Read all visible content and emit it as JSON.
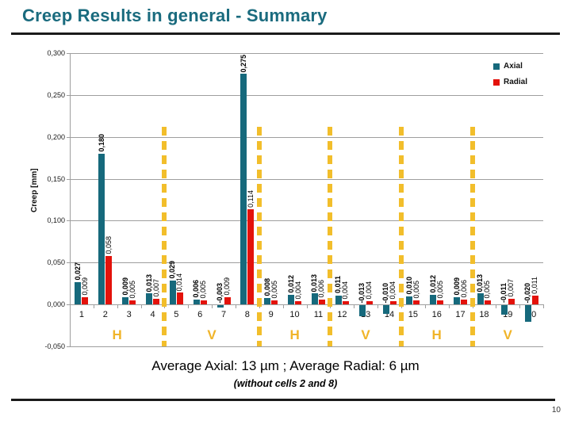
{
  "slide": {
    "title": "Creep Results in general - Summary",
    "summary_line": "Average Axial: 13 µm  ;  Average Radial: 6 µm",
    "summary_note": "(without cells 2 and 8)",
    "page_number": "10"
  },
  "colors": {
    "title": "#1A6B7E",
    "rule": "#1b1b1b",
    "gridline": "#9E9E9E",
    "axial": "#16697C",
    "radial": "#E3120B",
    "separator": "#F2BE2B",
    "group_letter": "#F0B429"
  },
  "chart_data": {
    "type": "bar",
    "title": "",
    "xlabel": "",
    "ylabel": "Creep [mm]",
    "ylim": [
      -0.05,
      0.3
    ],
    "ytick_step": 0.05,
    "yticks": [
      "0,300",
      "0,250",
      "0,200",
      "0,150",
      "0,100",
      "0,050",
      "0,000",
      "-0,050"
    ],
    "grid": true,
    "legend_position": "top-right",
    "categories": [
      "1",
      "2",
      "3",
      "4",
      "5",
      "6",
      "7",
      "8",
      "9",
      "10",
      "11",
      "12",
      "13",
      "14",
      "15",
      "16",
      "17",
      "18",
      "19",
      "20"
    ],
    "series": [
      {
        "name": "Axial",
        "color": "#16697C",
        "values": [
          0.027,
          0.18,
          0.009,
          0.013,
          0.029,
          0.006,
          -0.003,
          0.275,
          0.008,
          0.012,
          0.013,
          0.011,
          -0.013,
          -0.01,
          0.01,
          0.012,
          0.009,
          0.013,
          -0.011,
          -0.02
        ],
        "labels": [
          "0,027",
          "0,180",
          "0,009",
          "0,013",
          "0,029",
          "0,006",
          "-0,003",
          "0,275",
          "0,008",
          "0,012",
          "0,013",
          "0,011",
          "-0,013",
          "-0,010",
          "0,010",
          "0,012",
          "0,009",
          "0,013",
          "-0,011",
          "-0,020"
        ]
      },
      {
        "name": "Radial",
        "color": "#E3120B",
        "values": [
          0.009,
          0.058,
          0.005,
          0.007,
          0.014,
          0.005,
          0.009,
          0.114,
          0.005,
          0.004,
          0.006,
          0.004,
          0.004,
          0.004,
          0.005,
          0.005,
          0.006,
          0.005,
          0.007,
          0.011
        ],
        "labels": [
          "0,009",
          "0,058",
          "0,005",
          "0,007",
          "0,014",
          "0,005",
          "0,009",
          "0,114",
          "0,005",
          "0,004",
          "0,006",
          "0,004",
          "0,004",
          "0,004",
          "0,005",
          "0,005",
          "0,006",
          "0,005",
          "0,007",
          "0,011"
        ]
      }
    ],
    "groups": [
      {
        "label": "H",
        "from": 1,
        "to": 4
      },
      {
        "label": "V",
        "from": 5,
        "to": 8
      },
      {
        "label": "H",
        "from": 9,
        "to": 11
      },
      {
        "label": "V",
        "from": 12,
        "to": 14
      },
      {
        "label": "H",
        "from": 15,
        "to": 17
      },
      {
        "label": "V",
        "from": 18,
        "to": 20
      }
    ]
  }
}
